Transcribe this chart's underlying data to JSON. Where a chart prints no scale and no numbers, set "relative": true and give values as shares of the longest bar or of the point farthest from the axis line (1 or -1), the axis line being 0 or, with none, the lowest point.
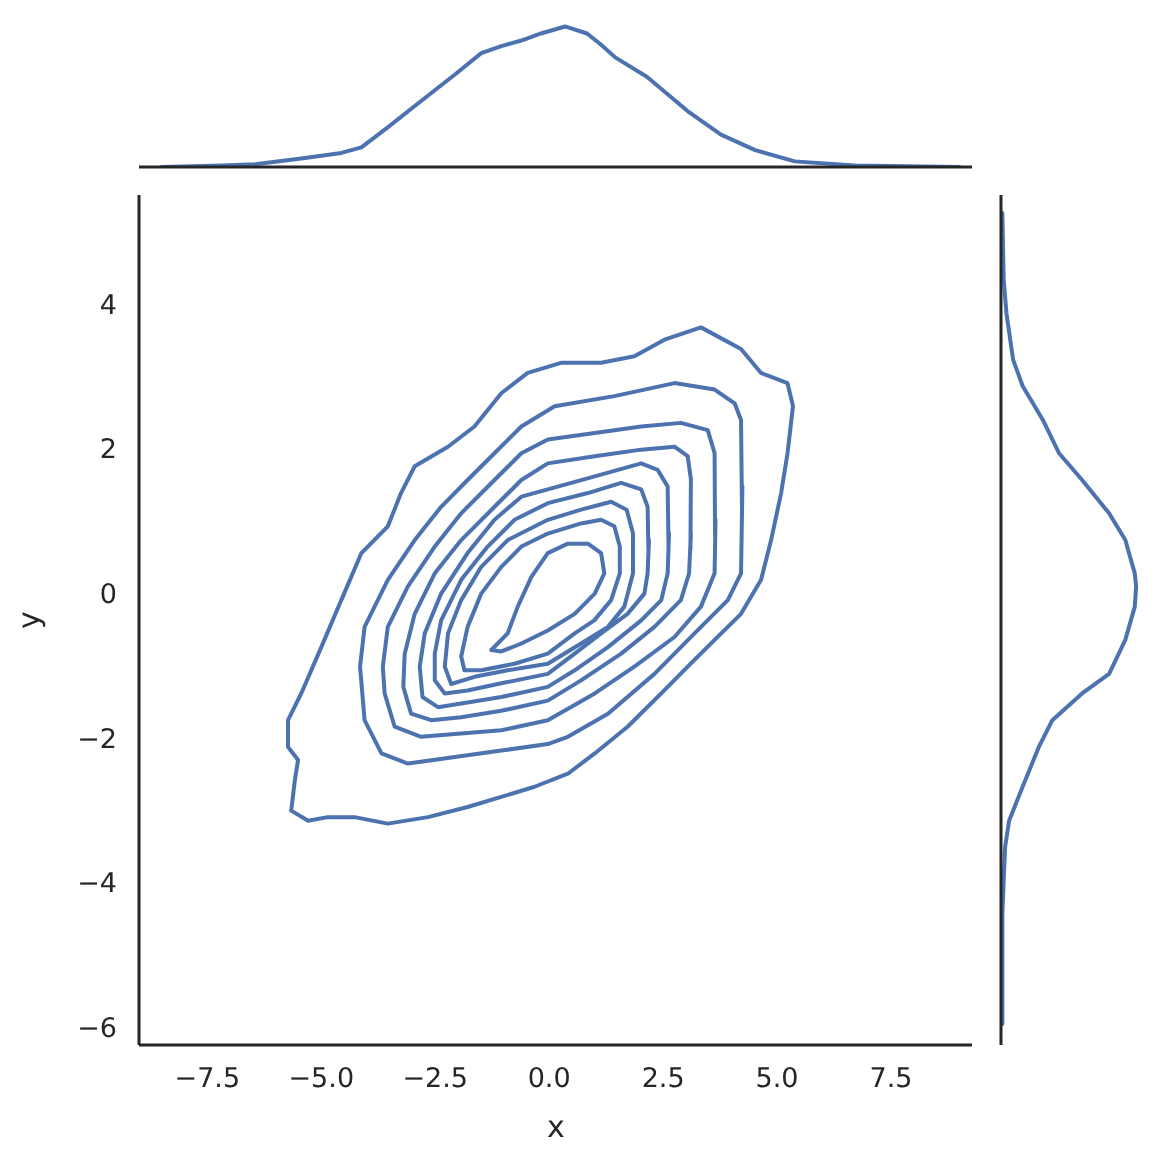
{
  "chart_data": [
    {
      "type": "line",
      "relative": true,
      "xlim": [
        -9,
        9.3
      ],
      "tick_labels": false,
      "series": [
        {
          "color": "#4c72b0",
          "x": [
            -8.5,
            -7.19,
            -6.45,
            -5.44,
            -4.56,
            -4.12,
            -3.55,
            -2.81,
            -2.06,
            -1.49,
            -1.05,
            -0.61,
            -0.18,
            0.35,
            0.83,
            1.14,
            1.45,
            2.15,
            3.03,
            3.77,
            4.52,
            5.39,
            6.71,
            9.0
          ],
          "values": [
            0,
            0.01,
            0.02,
            0.06,
            0.1,
            0.14,
            0.28,
            0.47,
            0.66,
            0.81,
            0.86,
            0.9,
            0.95,
            1.0,
            0.95,
            0.87,
            0.78,
            0.64,
            0.4,
            0.23,
            0.12,
            0.04,
            0.01,
            0
          ]
        }
      ]
    },
    {
      "type": "line",
      "xlabel": "x",
      "ylabel": "y",
      "xlim": [
        -9,
        9.3
      ],
      "ylim": [
        -6.25,
        5.5
      ],
      "xticks": [
        {
          "value": -7.5,
          "label": "−7.5"
        },
        {
          "value": -5,
          "label": "−5.0"
        },
        {
          "value": -2.5,
          "label": "−2.5"
        },
        {
          "value": 0,
          "label": "0.0"
        },
        {
          "value": 2.5,
          "label": "2.5"
        },
        {
          "value": 5,
          "label": "5.0"
        },
        {
          "value": 7.5,
          "label": "7.5"
        }
      ],
      "yticks": [
        {
          "value": -6,
          "label": "−6"
        },
        {
          "value": -4,
          "label": "−4"
        },
        {
          "value": -2,
          "label": "−2"
        },
        0,
        2,
        4
      ],
      "series": [
        {
          "color": "#4c72b0",
          "x": [
            -4.56,
            -4.12,
            -3.54,
            -3.25,
            -2.95,
            -2.22,
            -1.64,
            -1.05,
            -0.47,
            0.26,
            1.14,
            1.87,
            2.53,
            3.33,
            4.21,
            4.65,
            5.23,
            5.35,
            5.23,
            5.09,
            4.87,
            4.65,
            4.21,
            3.63,
            3.04,
            2.46,
            1.72,
            1.0,
            0.41,
            -0.32,
            -1.05,
            -1.79,
            -2.66,
            -3.54,
            -4.27,
            -4.86,
            -5.29,
            -5.66,
            -5.58,
            -5.51,
            -5.73,
            -5.73,
            -5.44,
            -5.0,
            -4.4
          ],
          "values": [
            -0.1,
            0.55,
            0.92,
            1.38,
            1.75,
            2.02,
            2.3,
            2.76,
            3.04,
            3.18,
            3.18,
            3.27,
            3.5,
            3.67,
            3.37,
            3.04,
            2.9,
            2.58,
            1.93,
            1.38,
            0.73,
            0.18,
            -0.29,
            -0.65,
            -1.02,
            -1.39,
            -1.85,
            -2.22,
            -2.5,
            -2.68,
            -2.82,
            -2.96,
            -3.1,
            -3.19,
            -3.1,
            -3.1,
            -3.15,
            -3.01,
            -2.59,
            -2.31,
            -2.13,
            -1.76,
            -1.39,
            -0.75,
            0.14
          ]
        },
        {
          "color": "#4c72b0",
          "x": [
            4.24,
            4.21,
            3.92,
            3.19,
            2.31,
            1.29,
            0.41,
            -0.03,
            -1.05,
            -2.07,
            -3.1,
            -3.68,
            -4.05,
            -4.15,
            -4.05,
            -3.54,
            -2.95,
            -2.37,
            -1.79,
            -1.2,
            -0.61,
            0.12,
            1.43,
            2.75,
            3.63,
            4.07,
            4.21,
            4.23
          ],
          "values": [
            1.47,
            0.27,
            -0.1,
            -0.56,
            -1.12,
            -1.67,
            -1.99,
            -2.09,
            -2.18,
            -2.27,
            -2.36,
            -2.22,
            -1.76,
            -1.02,
            -0.47,
            0.18,
            0.73,
            1.19,
            1.56,
            1.93,
            2.3,
            2.58,
            2.72,
            2.9,
            2.81,
            2.62,
            2.39,
            1.2
          ]
        },
        {
          "color": "#4c72b0",
          "x": [
            3.65,
            3.63,
            3.33,
            2.75,
            1.87,
            1.0,
            -0.03,
            -1.05,
            -2.07,
            -2.81,
            -3.39,
            -3.61,
            -3.65,
            -3.54,
            -3.1,
            -2.51,
            -1.93,
            -1.2,
            -0.61,
            -0.03,
            1.0,
            2.02,
            2.89,
            3.48,
            3.63,
            3.64
          ],
          "values": [
            1.01,
            0.27,
            -0.19,
            -0.61,
            -1.02,
            -1.39,
            -1.76,
            -1.9,
            -1.95,
            -1.99,
            -1.85,
            -1.39,
            -1.02,
            -0.47,
            0.09,
            0.64,
            1.1,
            1.56,
            1.93,
            2.12,
            2.21,
            2.3,
            2.35,
            2.25,
            1.93,
            0.8
          ]
        },
        {
          "color": "#4c72b0",
          "x": [
            3.11,
            3.07,
            2.89,
            2.31,
            1.58,
            0.7,
            -0.03,
            -1.05,
            -1.93,
            -2.59,
            -3.03,
            -3.2,
            -3.17,
            -2.95,
            -2.51,
            -1.93,
            -1.2,
            -0.61,
            -0.03,
            1.0,
            2.02,
            2.75,
            3.04,
            3.11,
            3.1
          ],
          "values": [
            0.82,
            0.27,
            -0.1,
            -0.47,
            -0.84,
            -1.21,
            -1.49,
            -1.63,
            -1.72,
            -1.76,
            -1.67,
            -1.3,
            -0.84,
            -0.29,
            0.27,
            0.73,
            1.19,
            1.56,
            1.79,
            1.89,
            1.98,
            2.02,
            1.89,
            1.57,
            0.6
          ]
        },
        {
          "color": "#4c72b0",
          "x": [
            2.63,
            2.6,
            2.46,
            2.02,
            1.29,
            0.56,
            -0.03,
            -1.05,
            -1.93,
            -2.44,
            -2.78,
            -2.84,
            -2.73,
            -2.37,
            -1.79,
            -1.2,
            -0.61,
            -0.03,
            1.0,
            2.02,
            2.38,
            2.6,
            2.62
          ],
          "values": [
            0.82,
            0.27,
            -0.1,
            -0.38,
            -0.75,
            -1.07,
            -1.3,
            -1.44,
            -1.53,
            -1.58,
            -1.44,
            -1.02,
            -0.56,
            -0.01,
            0.55,
            1.01,
            1.33,
            1.43,
            1.61,
            1.79,
            1.7,
            1.47,
            0.6
          ]
        },
        {
          "color": "#4c72b0",
          "x": [
            2.19,
            2.16,
            2.09,
            1.72,
            1.14,
            0.56,
            -0.03,
            -1.05,
            -1.79,
            -2.29,
            -2.51,
            -2.51,
            -2.37,
            -1.93,
            -1.35,
            -0.76,
            -0.03,
            0.85,
            1.58,
            2.02,
            2.16,
            2.18
          ],
          "values": [
            0.73,
            0.27,
            -0.01,
            -0.29,
            -0.56,
            -0.84,
            -1.12,
            -1.25,
            -1.35,
            -1.39,
            -1.21,
            -0.84,
            -0.38,
            0.18,
            0.64,
            1.01,
            1.24,
            1.38,
            1.52,
            1.43,
            1.19,
            0.55
          ]
        },
        {
          "color": "#4c72b0",
          "x": [
            1.84,
            1.84,
            1.65,
            1.29,
            0.7,
            -0.03,
            -0.91,
            -1.64,
            -2.15,
            -2.29,
            -2.22,
            -1.93,
            -1.49,
            -0.91,
            -0.03,
            0.7,
            1.36,
            1.7,
            1.84,
            1.84
          ],
          "values": [
            0.55,
            0.27,
            -0.19,
            -0.47,
            -0.7,
            -0.98,
            -1.07,
            -1.16,
            -1.26,
            -1.02,
            -0.56,
            -0.1,
            0.36,
            0.73,
            1.01,
            1.15,
            1.26,
            1.15,
            0.82,
            0.45
          ]
        },
        {
          "color": "#4c72b0",
          "x": [
            1.55,
            1.55,
            1.36,
            0.99,
            0.56,
            -0.03,
            -0.76,
            -1.49,
            -1.86,
            -1.93,
            -1.79,
            -1.49,
            -1.05,
            -0.61,
            -0.03,
            0.7,
            1.14,
            1.43,
            1.55,
            1.55
          ],
          "values": [
            0.45,
            0.27,
            -0.1,
            -0.38,
            -0.56,
            -0.84,
            -0.98,
            -1.07,
            -1.07,
            -0.88,
            -0.47,
            -0.01,
            0.36,
            0.64,
            0.82,
            0.96,
            1.01,
            0.92,
            0.64,
            0.38
          ]
        },
        {
          "color": "#4c72b0",
          "x": [
            0.63,
            0.85,
            1.14,
            1.21,
            1.0,
            0.56,
            -0.03,
            -0.61,
            -1.05,
            -1.27,
            -0.91,
            -0.69,
            -0.39,
            -0.03,
            0.41,
            0.72
          ],
          "values": [
            0.68,
            0.68,
            0.55,
            0.27,
            -0.01,
            -0.29,
            -0.52,
            -0.7,
            -0.81,
            -0.79,
            -0.56,
            -0.19,
            0.22,
            0.55,
            0.68,
            0.68
          ]
        }
      ]
    },
    {
      "type": "line",
      "relative": true,
      "orientation": "horizontal",
      "ylim": [
        -6.25,
        5.5
      ],
      "tick_labels": false,
      "series": [
        {
          "color": "#4c72b0",
          "x": [
            5.25,
            4.33,
            3.87,
            3.22,
            2.86,
            2.39,
            1.93,
            1.56,
            1.1,
            0.73,
            0.27,
            0.09,
            -0.19,
            -0.65,
            -1.12,
            -1.39,
            -1.76,
            -2.13,
            -2.68,
            -3.15,
            -3.52,
            -4.44,
            -5.96
          ],
          "values": [
            0.01,
            0.02,
            0.04,
            0.09,
            0.16,
            0.31,
            0.43,
            0.6,
            0.8,
            0.92,
            0.99,
            1.0,
            0.99,
            0.92,
            0.8,
            0.6,
            0.38,
            0.28,
            0.16,
            0.06,
            0.03,
            0.01,
            0.01
          ]
        }
      ]
    }
  ]
}
